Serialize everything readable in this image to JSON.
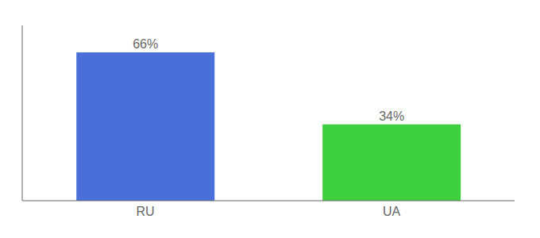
{
  "chart_data": {
    "type": "bar",
    "categories": [
      "RU",
      "UA"
    ],
    "values": [
      66,
      34
    ],
    "colors": [
      "#4a6fd8",
      "#3dcf3d"
    ],
    "ylim": [
      0,
      78
    ],
    "tick_labels": "x",
    "data_labels": true,
    "value_labels": [
      "66%",
      "34%"
    ]
  }
}
